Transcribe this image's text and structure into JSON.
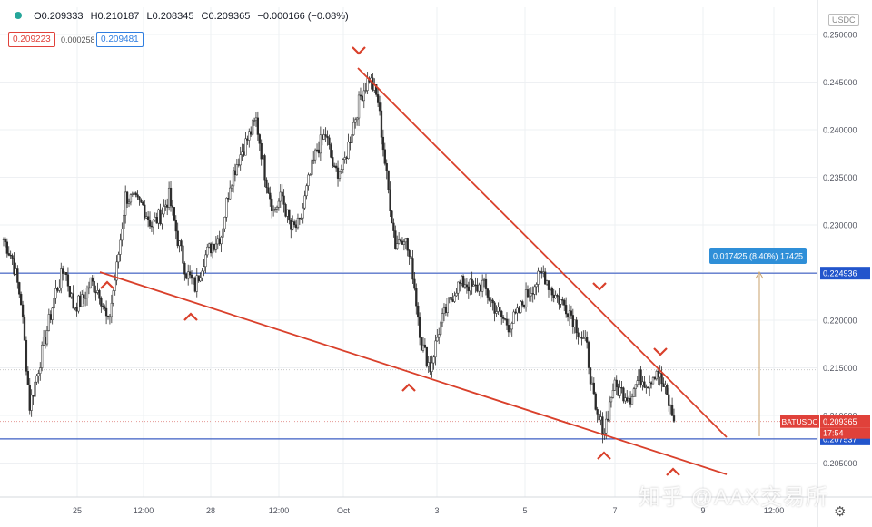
{
  "header": {
    "open": "O0.209333",
    "high": "H0.210187",
    "low": "L0.208345",
    "close": "C0.209365",
    "change": "−0.000166 (−0.08%)",
    "bid": "0.209223",
    "spread": "0.000258",
    "ask": "0.209481"
  },
  "currency_label": "USDC",
  "watermark": "知乎 @AAX交易所",
  "colors": {
    "up": "#26a69a",
    "candle": "#2b2b2b",
    "trend": "#d9402b",
    "hline": "#3d5fc4",
    "measure_box": "#2f8fd8",
    "price_tag": "#e0413a",
    "axis_tag": "#2255cc",
    "grid": "#eef0f3"
  },
  "chart_data": {
    "type": "candlestick",
    "symbol": "BATUSDC",
    "y_axis": {
      "range": [
        0.2025,
        0.2525
      ],
      "ticks": [
        "0.250000",
        "0.245000",
        "0.240000",
        "0.235000",
        "0.230000",
        "0.225000",
        "0.220000",
        "0.215000",
        "0.210000",
        "0.205000"
      ]
    },
    "x_axis": {
      "ticks": [
        "25",
        "12:00",
        "28",
        "12:00",
        "Oct",
        "3",
        "5",
        "7",
        "9",
        "12:00"
      ]
    },
    "price_labels": {
      "current_symbol": "BATUSDC",
      "current_price": "0.209365",
      "countdown": "17:54",
      "resistance": "0.224936",
      "support": "0.207537"
    },
    "measure": {
      "label": "0.017425 (8.40%) 17425"
    },
    "approx_close_path": [
      0.2285,
      0.2265,
      0.222,
      0.211,
      0.215,
      0.219,
      0.223,
      0.2255,
      0.2215,
      0.222,
      0.224,
      0.223,
      0.2195,
      0.2255,
      0.233,
      0.2325,
      0.232,
      0.23,
      0.231,
      0.233,
      0.2285,
      0.225,
      0.2235,
      0.2265,
      0.228,
      0.229,
      0.2345,
      0.237,
      0.239,
      0.241,
      0.2355,
      0.2315,
      0.233,
      0.2295,
      0.23,
      0.2345,
      0.238,
      0.2395,
      0.2355,
      0.236,
      0.24,
      0.2435,
      0.2455,
      0.243,
      0.235,
      0.228,
      0.229,
      0.225,
      0.2175,
      0.215,
      0.219,
      0.2215,
      0.2235,
      0.224,
      0.2232,
      0.2238,
      0.222,
      0.2205,
      0.2195,
      0.2205,
      0.2225,
      0.2238,
      0.225,
      0.223,
      0.222,
      0.221,
      0.219,
      0.217,
      0.21,
      0.2085,
      0.213,
      0.2125,
      0.212,
      0.214,
      0.2135,
      0.2148,
      0.2125,
      0.2094
    ],
    "annotations": {
      "down_markers": [
        [
          395,
          58
        ],
        [
          660,
          318
        ],
        [
          727,
          390
        ]
      ],
      "up_markers": [
        [
          118,
          312
        ],
        [
          210,
          347
        ],
        [
          450,
          425
        ],
        [
          665,
          500
        ],
        [
          741,
          518
        ]
      ]
    }
  }
}
